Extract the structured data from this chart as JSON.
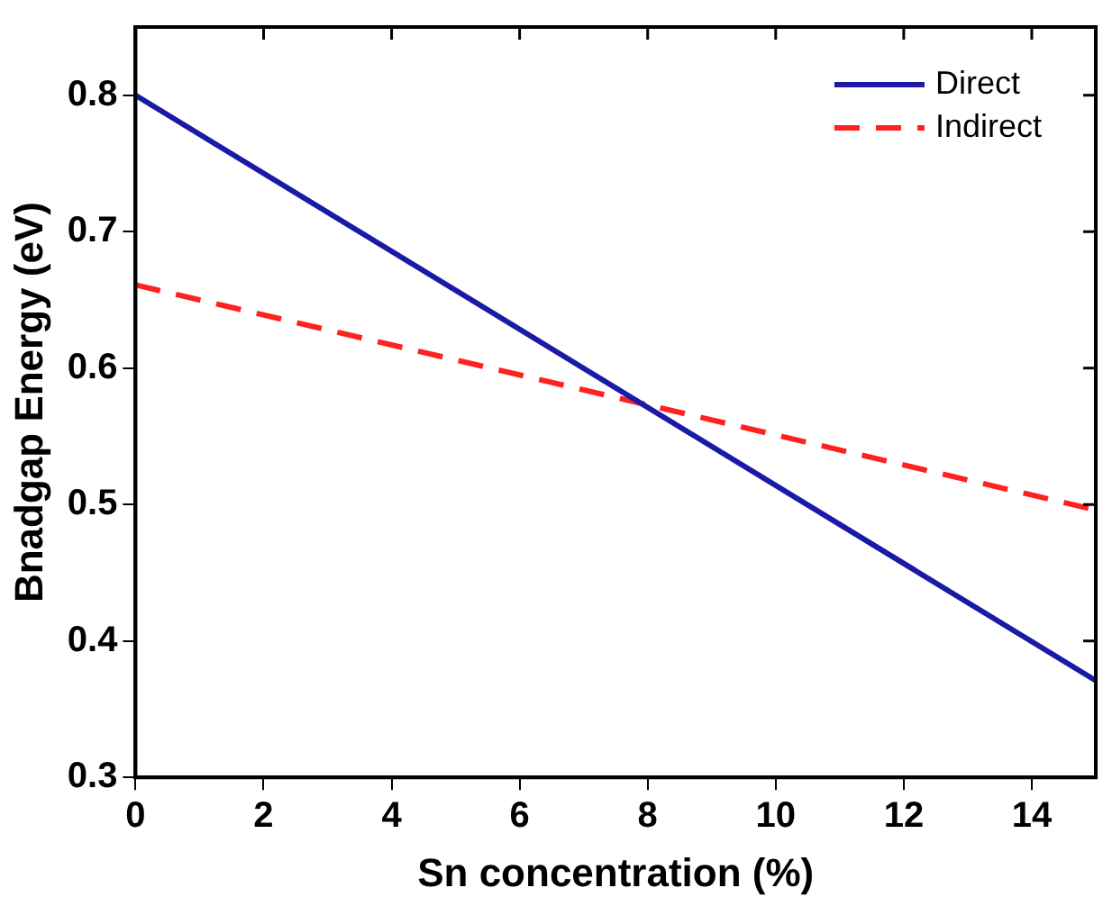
{
  "chart_data": {
    "type": "line",
    "xlabel": "Sn concentration (%)",
    "ylabel": "Bnadgap Energy (eV)",
    "x": [
      0,
      15
    ],
    "series": [
      {
        "name": "Direct",
        "color": "#1a1aa6",
        "values": [
          0.8,
          0.371
        ],
        "line_style": "solid"
      },
      {
        "name": "Indirect",
        "color": "#ff2020",
        "values": [
          0.661,
          0.496
        ],
        "line_style": "dashed"
      }
    ],
    "xlim": [
      0,
      15
    ],
    "ylim": [
      0.3,
      0.85
    ],
    "xticks": [
      0,
      2,
      4,
      6,
      8,
      10,
      12,
      14
    ],
    "yticks": [
      0.3,
      0.4,
      0.5,
      0.6,
      0.7,
      0.8
    ],
    "legend": "top right",
    "marker": "none",
    "grid": false
  }
}
